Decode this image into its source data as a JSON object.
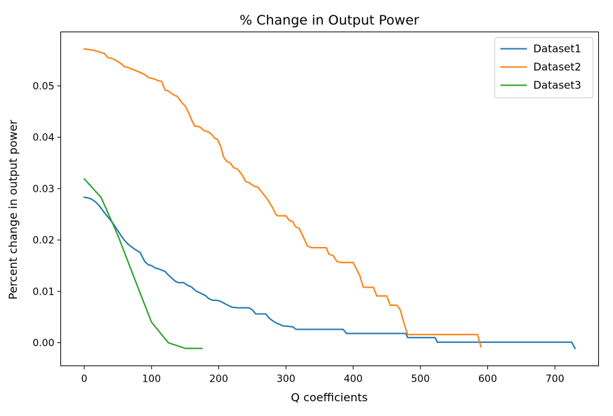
{
  "chart_data": {
    "type": "line",
    "title": "% Change in Output Power",
    "xlabel": "Q coefficients",
    "ylabel": "Percent change in output power",
    "xlim": [
      -35,
      765
    ],
    "ylim": [
      -0.0045,
      0.0605
    ],
    "x_ticks": [
      0,
      100,
      200,
      300,
      400,
      500,
      600,
      700
    ],
    "y_ticks": [
      0.0,
      0.01,
      0.02,
      0.03,
      0.04,
      0.05
    ],
    "x_tick_labels": [
      "0",
      "100",
      "200",
      "300",
      "400",
      "500",
      "600",
      "700"
    ],
    "y_tick_labels": [
      "0.00",
      "0.01",
      "0.02",
      "0.03",
      "0.04",
      "0.05"
    ],
    "grid": false,
    "legend_position": "top-right",
    "series": [
      {
        "name": "Dataset1",
        "color": "#1f77b4",
        "points": [
          [
            0,
            0.0283
          ],
          [
            5,
            0.0282
          ],
          [
            10,
            0.028
          ],
          [
            15,
            0.0276
          ],
          [
            20,
            0.027
          ],
          [
            25,
            0.0262
          ],
          [
            30,
            0.0253
          ],
          [
            35,
            0.0245
          ],
          [
            40,
            0.0237
          ],
          [
            45,
            0.0228
          ],
          [
            50,
            0.0218
          ],
          [
            55,
            0.0208
          ],
          [
            60,
            0.0199
          ],
          [
            65,
            0.0192
          ],
          [
            70,
            0.0187
          ],
          [
            75,
            0.0182
          ],
          [
            80,
            0.0178
          ],
          [
            83,
            0.0176
          ],
          [
            86,
            0.0168
          ],
          [
            90,
            0.0158
          ],
          [
            95,
            0.0152
          ],
          [
            100,
            0.015
          ],
          [
            105,
            0.0146
          ],
          [
            112,
            0.0143
          ],
          [
            120,
            0.0139
          ],
          [
            125,
            0.0132
          ],
          [
            130,
            0.0126
          ],
          [
            135,
            0.012
          ],
          [
            140,
            0.0117
          ],
          [
            148,
            0.0117
          ],
          [
            152,
            0.0113
          ],
          [
            160,
            0.0108
          ],
          [
            166,
            0.0101
          ],
          [
            172,
            0.0097
          ],
          [
            180,
            0.0092
          ],
          [
            185,
            0.0086
          ],
          [
            190,
            0.0083
          ],
          [
            200,
            0.0082
          ],
          [
            205,
            0.0079
          ],
          [
            212,
            0.0074
          ],
          [
            220,
            0.0069
          ],
          [
            228,
            0.0068
          ],
          [
            245,
            0.0068
          ],
          [
            250,
            0.0064
          ],
          [
            255,
            0.0056
          ],
          [
            270,
            0.0056
          ],
          [
            275,
            0.0048
          ],
          [
            283,
            0.004
          ],
          [
            290,
            0.0036
          ],
          [
            295,
            0.0033
          ],
          [
            310,
            0.0031
          ],
          [
            315,
            0.0026
          ],
          [
            330,
            0.0026
          ],
          [
            385,
            0.0026
          ],
          [
            390,
            0.0018
          ],
          [
            478,
            0.0018
          ],
          [
            481,
            0.001
          ],
          [
            522,
            0.001
          ],
          [
            525,
            0.0001
          ],
          [
            725,
            0.0001
          ],
          [
            730,
            -0.0011
          ]
        ]
      },
      {
        "name": "Dataset2",
        "color": "#ff7f0e",
        "points": [
          [
            0,
            0.0572
          ],
          [
            5,
            0.0571
          ],
          [
            15,
            0.0569
          ],
          [
            25,
            0.0565
          ],
          [
            30,
            0.0563
          ],
          [
            35,
            0.0555
          ],
          [
            40,
            0.0554
          ],
          [
            48,
            0.0549
          ],
          [
            55,
            0.0543
          ],
          [
            60,
            0.0537
          ],
          [
            65,
            0.0536
          ],
          [
            72,
            0.0532
          ],
          [
            80,
            0.0528
          ],
          [
            90,
            0.0522
          ],
          [
            96,
            0.0516
          ],
          [
            102,
            0.0514
          ],
          [
            107,
            0.0512
          ],
          [
            110,
            0.051
          ],
          [
            115,
            0.0509
          ],
          [
            120,
            0.0492
          ],
          [
            125,
            0.049
          ],
          [
            130,
            0.0485
          ],
          [
            135,
            0.0481
          ],
          [
            138,
            0.048
          ],
          [
            142,
            0.0473
          ],
          [
            146,
            0.0466
          ],
          [
            150,
            0.0461
          ],
          [
            155,
            0.0448
          ],
          [
            160,
            0.0433
          ],
          [
            164,
            0.0422
          ],
          [
            172,
            0.042
          ],
          [
            178,
            0.0413
          ],
          [
            185,
            0.041
          ],
          [
            190,
            0.0405
          ],
          [
            194,
            0.0398
          ],
          [
            198,
            0.0396
          ],
          [
            203,
            0.0382
          ],
          [
            207,
            0.0362
          ],
          [
            212,
            0.0353
          ],
          [
            217,
            0.035
          ],
          [
            222,
            0.0341
          ],
          [
            228,
            0.0338
          ],
          [
            235,
            0.0326
          ],
          [
            240,
            0.0314
          ],
          [
            246,
            0.0311
          ],
          [
            252,
            0.0305
          ],
          [
            258,
            0.0303
          ],
          [
            266,
            0.029
          ],
          [
            272,
            0.028
          ],
          [
            280,
            0.0263
          ],
          [
            285,
            0.025
          ],
          [
            288,
            0.0247
          ],
          [
            300,
            0.0247
          ],
          [
            305,
            0.0238
          ],
          [
            310,
            0.0236
          ],
          [
            314,
            0.0226
          ],
          [
            320,
            0.0222
          ],
          [
            325,
            0.0208
          ],
          [
            332,
            0.0188
          ],
          [
            338,
            0.0185
          ],
          [
            360,
            0.0185
          ],
          [
            364,
            0.0172
          ],
          [
            370,
            0.017
          ],
          [
            376,
            0.0158
          ],
          [
            382,
            0.0156
          ],
          [
            400,
            0.0156
          ],
          [
            410,
            0.013
          ],
          [
            415,
            0.0108
          ],
          [
            430,
            0.0108
          ],
          [
            435,
            0.0091
          ],
          [
            450,
            0.0091
          ],
          [
            455,
            0.0073
          ],
          [
            465,
            0.0073
          ],
          [
            470,
            0.0064
          ],
          [
            476,
            0.0036
          ],
          [
            481,
            0.0016
          ],
          [
            585,
            0.0016
          ],
          [
            590,
            -0.0008
          ]
        ]
      },
      {
        "name": "Dataset3",
        "color": "#2ca02c",
        "points": [
          [
            0,
            0.0319
          ],
          [
            25,
            0.0283
          ],
          [
            50,
            0.0209
          ],
          [
            75,
            0.0124
          ],
          [
            100,
            0.004
          ],
          [
            125,
            0.0
          ],
          [
            150,
            -0.0011
          ],
          [
            175,
            -0.0011
          ]
        ]
      }
    ]
  }
}
